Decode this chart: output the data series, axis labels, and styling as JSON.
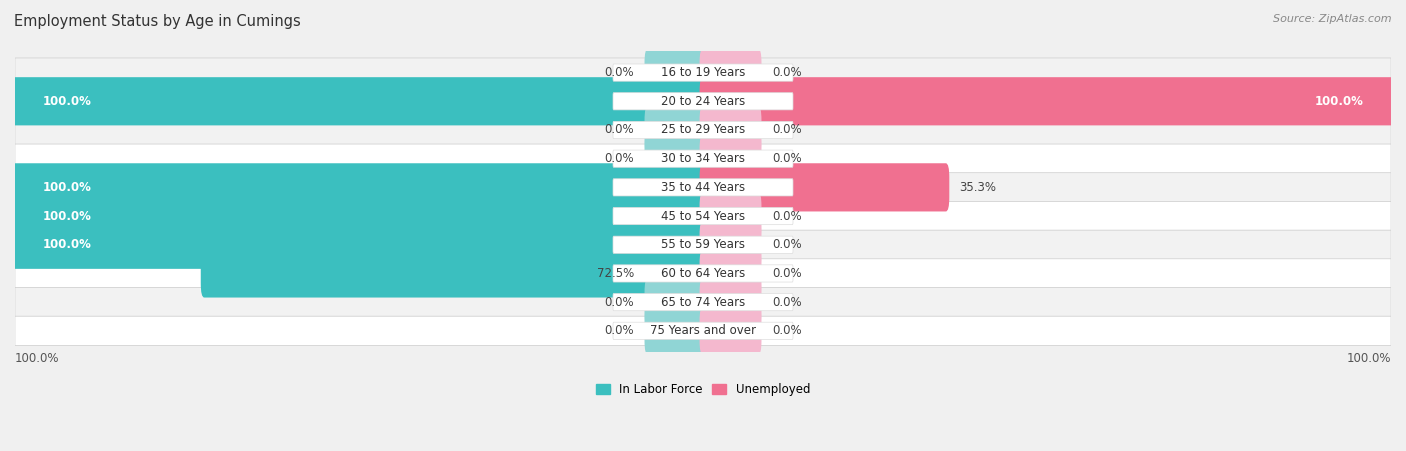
{
  "title": "Employment Status by Age in Cumings",
  "source": "Source: ZipAtlas.com",
  "categories": [
    "16 to 19 Years",
    "20 to 24 Years",
    "25 to 29 Years",
    "30 to 34 Years",
    "35 to 44 Years",
    "45 to 54 Years",
    "55 to 59 Years",
    "60 to 64 Years",
    "65 to 74 Years",
    "75 Years and over"
  ],
  "in_labor_force": [
    0.0,
    100.0,
    0.0,
    0.0,
    100.0,
    100.0,
    100.0,
    72.5,
    0.0,
    0.0
  ],
  "unemployed": [
    0.0,
    100.0,
    0.0,
    0.0,
    35.3,
    0.0,
    0.0,
    0.0,
    0.0,
    0.0
  ],
  "labor_color": "#3BBFBF",
  "unemployed_color": "#F07090",
  "labor_color_light": "#90D5D5",
  "unemployed_color_light": "#F4B8CE",
  "row_colors": [
    "#EFEFEF",
    "#FFFFFF"
  ],
  "title_fontsize": 10.5,
  "source_fontsize": 8,
  "label_fontsize": 8.5,
  "cat_label_fontsize": 8.5,
  "value_label_fontsize": 8.5,
  "axis_min": -100,
  "axis_max": 100,
  "stub_size": 8.0,
  "background_color": "#F0F0F0"
}
